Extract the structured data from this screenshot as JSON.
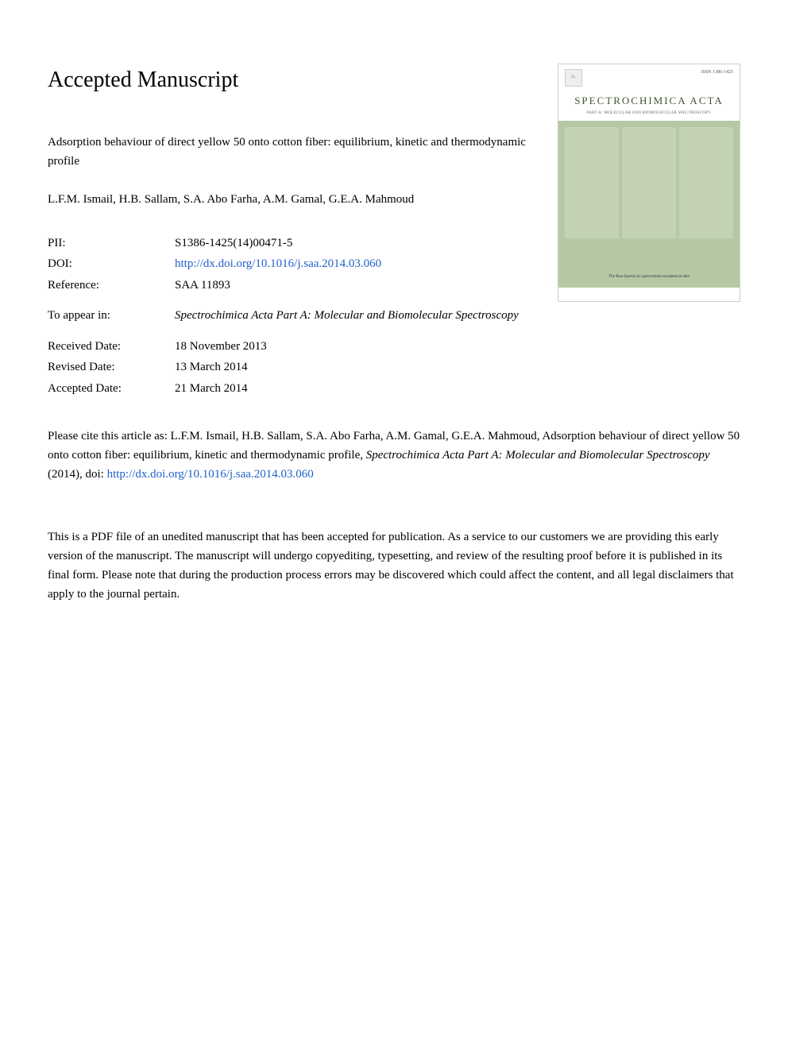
{
  "heading": "Accepted Manuscript",
  "article_title": "Adsorption behaviour of direct yellow 50 onto cotton fiber: equilibrium, kinetic and thermodynamic profile",
  "authors": "L.F.M. Ismail, H.B. Sallam, S.A. Abo Farha, A.M. Gamal, G.E.A. Mahmoud",
  "meta": {
    "pii_label": "PII:",
    "pii_value": "S1386-1425(14)00471-5",
    "doi_label": "DOI:",
    "doi_url": "http://dx.doi.org/10.1016/j.saa.2014.03.060",
    "reference_label": "Reference:",
    "reference_value": "SAA 11893",
    "appear_label": "To appear in:",
    "appear_value": "Spectrochimica Acta Part A: Molecular and Biomolecular Spectroscopy",
    "received_label": "Received Date:",
    "received_value": "18 November 2013",
    "revised_label": "Revised Date:",
    "revised_value": "13 March 2014",
    "accepted_label": "Accepted Date:",
    "accepted_value": "21 March 2014"
  },
  "cover": {
    "issn": "ISSN 1386-1425",
    "journal_name": "SPECTROCHIMICA ACTA",
    "subtitle": "PART A: MOLECULAR AND BIOMOLECULAR SPECTROSCOPY",
    "footer": "The Best Spectra in: spectrometicsacademical data",
    "background_color": "#b5c8a4",
    "panel_color": "#c3d2b4",
    "title_color": "#445533"
  },
  "citation": {
    "prefix": "Please cite this article as: L.F.M. Ismail, H.B. Sallam, S.A. Abo Farha, A.M. Gamal, G.E.A. Mahmoud, Adsorption behaviour of direct yellow 50 onto cotton fiber: equilibrium, kinetic and thermodynamic profile, ",
    "journal": "Spectrochimica Acta Part A: Molecular and Biomolecular Spectroscopy",
    "year_doi": " (2014), doi: ",
    "doi_url": "http://dx.doi.org/10.1016/j.saa.2014.03.060"
  },
  "disclaimer": "This is a PDF file of an unedited manuscript that has been accepted for publication. As a service to our customers we are providing this early version of the manuscript. The manuscript will undergo copyediting, typesetting, and review of the resulting proof before it is published in its final form. Please note that during the production process errors may be discovered which could affect the content, and all legal disclaimers that apply to the journal pertain.",
  "colors": {
    "link": "#2161c9",
    "text": "#000000",
    "background": "#ffffff"
  },
  "typography": {
    "heading_fontsize": 28,
    "body_fontsize": 15,
    "font_family": "Georgia, Times New Roman, serif"
  }
}
